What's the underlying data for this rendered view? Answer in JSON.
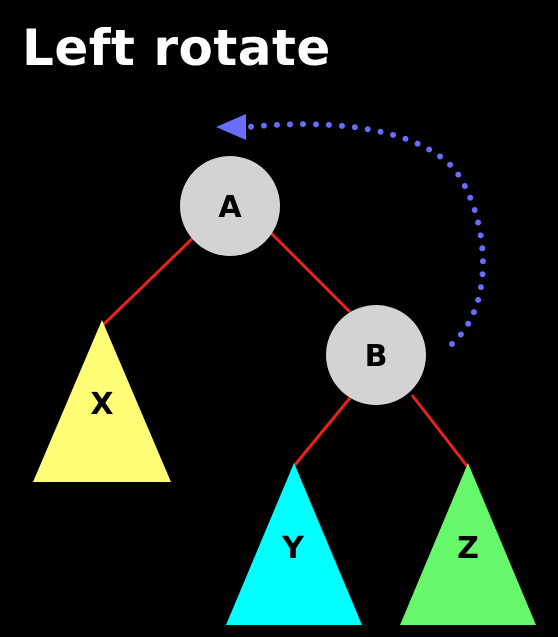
{
  "title": "Left rotate",
  "nodes": {
    "a": {
      "label": "A"
    },
    "b": {
      "label": "B"
    }
  },
  "subtrees": {
    "x": {
      "label": "X"
    },
    "y": {
      "label": "Y"
    },
    "z": {
      "label": "Z"
    }
  },
  "colors": {
    "background": "#000000",
    "title": "#ffffff",
    "edge": "#e8231b",
    "node_fill": "#d3d3d3",
    "subtree_x": "#ffff77",
    "subtree_y": "#00ffff",
    "subtree_z": "#66f76b",
    "rotation_arrow": "#6a6cff"
  },
  "rotation_arrow": {
    "icon": "dotted-curved-arrow-left"
  }
}
